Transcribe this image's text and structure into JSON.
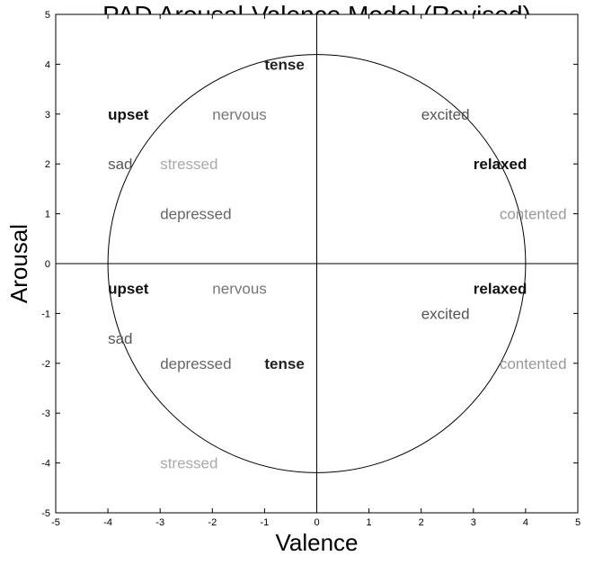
{
  "chart_data": {
    "type": "scatter",
    "title": "PAD Arousal-Valence Model (Revised)",
    "xlabel": "Valence",
    "ylabel": "Arousal",
    "xlim": [
      -5,
      5
    ],
    "ylim": [
      -5,
      5
    ],
    "xticks": [
      -5,
      -4,
      -3,
      -2,
      -1,
      0,
      1,
      2,
      3,
      4,
      5
    ],
    "yticks": [
      -5,
      -4,
      -3,
      -2,
      -1,
      0,
      1,
      2,
      3,
      4,
      5
    ],
    "grid": false,
    "circle": {
      "center": [
        0,
        0
      ],
      "radius": 4
    },
    "points": [
      {
        "label": "tense",
        "x": -1,
        "y": 4,
        "color": "#222222",
        "bold": true
      },
      {
        "label": "upset",
        "x": -4,
        "y": 3,
        "color": "#111111",
        "bold": true
      },
      {
        "label": "nervous",
        "x": -2,
        "y": 3,
        "color": "#777777",
        "bold": false
      },
      {
        "label": "excited",
        "x": 2,
        "y": 3,
        "color": "#555555",
        "bold": false
      },
      {
        "label": "sad",
        "x": -4,
        "y": 2,
        "color": "#555555",
        "bold": false
      },
      {
        "label": "stressed",
        "x": -3,
        "y": 2,
        "color": "#aaaaaa",
        "bold": false
      },
      {
        "label": "relaxed",
        "x": 3,
        "y": 2,
        "color": "#111111",
        "bold": true
      },
      {
        "label": "depressed",
        "x": -3,
        "y": 1,
        "color": "#666666",
        "bold": false
      },
      {
        "label": "contented",
        "x": 3.5,
        "y": 1,
        "color": "#999999",
        "bold": false
      },
      {
        "label": "upset",
        "x": -4,
        "y": -0.5,
        "color": "#111111",
        "bold": true
      },
      {
        "label": "nervous",
        "x": -2,
        "y": -0.5,
        "color": "#777777",
        "bold": false
      },
      {
        "label": "relaxed",
        "x": 3,
        "y": -0.5,
        "color": "#111111",
        "bold": true
      },
      {
        "label": "excited",
        "x": 2,
        "y": -1,
        "color": "#555555",
        "bold": false
      },
      {
        "label": "sad",
        "x": -4,
        "y": -1.5,
        "color": "#555555",
        "bold": false
      },
      {
        "label": "depressed",
        "x": -3,
        "y": -2,
        "color": "#666666",
        "bold": false
      },
      {
        "label": "tense",
        "x": -1,
        "y": -2,
        "color": "#222222",
        "bold": true
      },
      {
        "label": "contented",
        "x": 3.5,
        "y": -2,
        "color": "#999999",
        "bold": false
      },
      {
        "label": "stressed",
        "x": -3,
        "y": -4,
        "color": "#aaaaaa",
        "bold": false
      }
    ]
  }
}
